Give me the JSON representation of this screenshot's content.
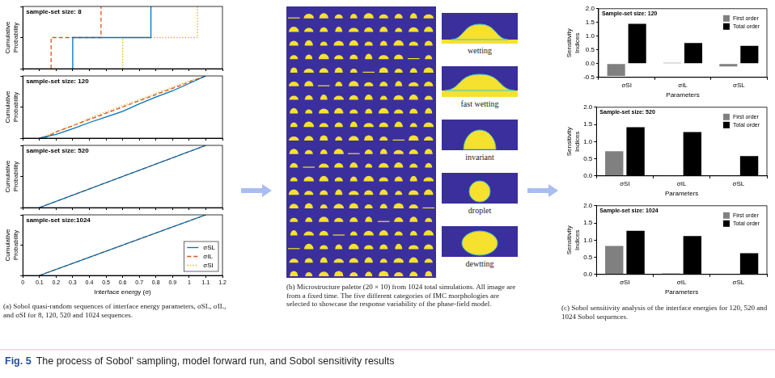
{
  "chart_data": [
    {
      "type": "line",
      "title": "sample-set size: 8",
      "ylabel": "Cumulative Probability",
      "xlim": [
        0,
        1.2
      ],
      "xticks": [
        0,
        0.1,
        0.2,
        0.3,
        0.4,
        0.5,
        0.6,
        0.7,
        0.8,
        0.9,
        1,
        1.1,
        1.2
      ],
      "ylim": [
        0,
        1
      ],
      "yticks": [
        0,
        0.5,
        1
      ],
      "tick_labels": false,
      "grid": false,
      "series": [
        {
          "color": "#0072BD",
          "line_style": "solid",
          "x": [
            0.3,
            0.3,
            0.77,
            0.77
          ],
          "values": [
            0,
            0.5,
            0.5,
            1
          ]
        },
        {
          "color": "#D95319",
          "line_style": "dashed",
          "x": [
            0.17,
            0.17,
            0.47,
            0.47
          ],
          "values": [
            0,
            0.5,
            0.5,
            1
          ]
        },
        {
          "color": "#EDB120",
          "line_style": "dotted",
          "x": [
            0.6,
            0.6,
            1.05,
            1.05
          ],
          "values": [
            0,
            0.5,
            0.5,
            1
          ]
        }
      ]
    },
    {
      "type": "line",
      "title": "sample-set size: 120",
      "ylabel": "Cumulative Probability",
      "xlim": [
        0,
        1.2
      ],
      "xticks": [
        0,
        0.1,
        0.2,
        0.3,
        0.4,
        0.5,
        0.6,
        0.7,
        0.8,
        0.9,
        1,
        1.1,
        1.2
      ],
      "ylim": [
        0,
        1
      ],
      "yticks": [
        0,
        0.5,
        1
      ],
      "tick_labels": false,
      "grid": false,
      "series": [
        {
          "color": "#0072BD",
          "line_style": "solid",
          "x": [
            0.1,
            0.2,
            0.3,
            0.4,
            0.5,
            0.6,
            0.7,
            0.8,
            0.9,
            1,
            1.1
          ],
          "values": [
            0,
            0.06,
            0.15,
            0.25,
            0.34,
            0.43,
            0.55,
            0.66,
            0.76,
            0.88,
            1
          ]
        },
        {
          "color": "#D95319",
          "line_style": "dashed",
          "x": [
            0.13,
            0.2,
            0.3,
            0.4,
            0.5,
            0.6,
            0.7,
            0.8,
            0.9,
            1,
            1.1
          ],
          "values": [
            0,
            0.1,
            0.2,
            0.3,
            0.4,
            0.5,
            0.6,
            0.7,
            0.8,
            0.9,
            1
          ]
        },
        {
          "color": "#EDB120",
          "line_style": "dotted",
          "x": [
            0.1,
            0.2,
            0.3,
            0.4,
            0.5,
            0.6,
            0.7,
            0.8,
            0.9,
            1,
            1.1
          ],
          "values": [
            0,
            0.1,
            0.2,
            0.32,
            0.42,
            0.52,
            0.62,
            0.72,
            0.82,
            0.92,
            1
          ]
        }
      ]
    },
    {
      "type": "line",
      "title": "sample-set size: 520",
      "ylabel": "Cumulative Probability",
      "xlim": [
        0,
        1.2
      ],
      "xticks": [
        0,
        0.1,
        0.2,
        0.3,
        0.4,
        0.5,
        0.6,
        0.7,
        0.8,
        0.9,
        1,
        1.1,
        1.2
      ],
      "ylim": [
        0,
        1
      ],
      "yticks": [
        0,
        0.5,
        1
      ],
      "tick_labels": false,
      "grid": false,
      "series": [
        {
          "color": "#0072BD",
          "line_style": "solid",
          "x": [
            0.1,
            1.1
          ],
          "values": [
            0,
            1
          ]
        },
        {
          "color": "#D95319",
          "line_style": "dashed",
          "x": [
            0.1,
            1.1
          ],
          "values": [
            0,
            1
          ]
        },
        {
          "color": "#EDB120",
          "line_style": "dotted",
          "x": [
            0.1,
            1.1
          ],
          "values": [
            0,
            1
          ]
        }
      ]
    },
    {
      "type": "line",
      "title": "sample-set size:1024",
      "xlabel": "Interface energy (σ)",
      "ylabel": "Cumulative Probability",
      "xlim": [
        0,
        1.2
      ],
      "xticks": [
        0,
        0.1,
        0.2,
        0.3,
        0.4,
        0.5,
        0.6,
        0.7,
        0.8,
        0.9,
        1,
        1.1,
        1.2
      ],
      "ylim": [
        0,
        1
      ],
      "yticks": [
        0,
        0.5,
        1
      ],
      "tick_labels": "x",
      "grid": false,
      "legend": "lower right",
      "series": [
        {
          "name": "σSL",
          "color": "#0072BD",
          "line_style": "solid",
          "x": [
            0.1,
            1.1
          ],
          "values": [
            0,
            1
          ]
        },
        {
          "name": "σIL",
          "color": "#D95319",
          "line_style": "dashed",
          "x": [
            0.1,
            1.1
          ],
          "values": [
            0,
            1
          ]
        },
        {
          "name": "σSI",
          "color": "#EDB120",
          "line_style": "dotted",
          "x": [
            0.1,
            1.1
          ],
          "values": [
            0,
            1
          ]
        }
      ]
    },
    {
      "type": "bar",
      "title": "Sample-set size: 120",
      "xlabel": "Parameters",
      "ylabel": "Sensitivity Indices",
      "categories": [
        "σSI",
        "σIL",
        "σSL"
      ],
      "ylim": [
        -0.5,
        2
      ],
      "yticks": [
        -0.5,
        {
          "value": 0,
          "label": "0.0"
        },
        0.5,
        {
          "value": 1,
          "label": "1.0"
        },
        1.5,
        {
          "value": 2,
          "label": "2.0"
        }
      ],
      "grid": false,
      "legend": "upper right",
      "series": [
        {
          "name": "First order",
          "color": "#808080",
          "values": [
            -0.45,
            0.03,
            -0.1
          ]
        },
        {
          "name": "Total order",
          "color": "#000000",
          "values": [
            1.45,
            0.75,
            0.65
          ]
        }
      ]
    },
    {
      "type": "bar",
      "title": "Sample-set size: 520",
      "xlabel": "Parameters",
      "ylabel": "Sensitivity Indices",
      "categories": [
        "σSI",
        "σIL",
        "σSL"
      ],
      "ylim": [
        0,
        2
      ],
      "yticks": [
        {
          "value": 0,
          "label": "0.0"
        },
        0.5,
        {
          "value": 1,
          "label": "1.0"
        },
        1.5,
        {
          "value": 2,
          "label": "2.0"
        }
      ],
      "grid": false,
      "legend": "upper right",
      "series": [
        {
          "name": "First order",
          "color": "#808080",
          "values": [
            0.72,
            0.02,
            0.01
          ]
        },
        {
          "name": "Total order",
          "color": "#000000",
          "values": [
            1.42,
            1.28,
            0.58
          ]
        }
      ]
    },
    {
      "type": "bar",
      "title": "Sample-set size: 1024",
      "xlabel": "Parameters",
      "ylabel": "Sensitivity Indices",
      "categories": [
        "σSI",
        "σIL",
        "σSL"
      ],
      "ylim": [
        0,
        2
      ],
      "yticks": [
        {
          "value": 0,
          "label": "0.0"
        },
        0.5,
        {
          "value": 1,
          "label": "1.0"
        },
        1.5,
        {
          "value": 2,
          "label": "2.0"
        }
      ],
      "grid": false,
      "legend": "upper right",
      "series": [
        {
          "name": "First order",
          "color": "#808080",
          "values": [
            0.83,
            0.03,
            0.02
          ]
        },
        {
          "name": "Total order",
          "color": "#000000",
          "values": [
            1.27,
            1.12,
            0.62
          ]
        }
      ]
    }
  ],
  "palette": {
    "examples": [
      "wetting",
      "fast wetting",
      "invariant",
      "droplet",
      "dewtting"
    ]
  },
  "captions": [
    {
      "label": "(a)",
      "text": "Sobol quasi-random sequences of interface energy parameters, σSL, σIL, and σSI for 8, 120, 520 and 1024 sequences."
    },
    {
      "label": "(b)",
      "text": "Microstructure palette (20 × 10) from 1024 total simulations. All image are from a fixed time. The five different categories of IMC morphologies are selected to showcase the response variability of the phase-field model."
    },
    {
      "label": "(c)",
      "text": "Sobol sensitivity analysis of the interface energies for 120, 520 and 1024 Sobol sequences."
    }
  ],
  "figure_caption": {
    "label": "Fig. 5",
    "text": "The process of Sobol' sampling, model forward run, and Sobol sensitivity results"
  }
}
